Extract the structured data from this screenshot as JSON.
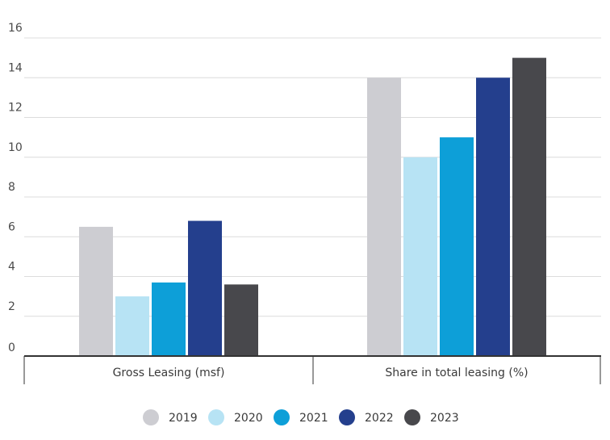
{
  "chart_data": {
    "type": "bar",
    "categories": [
      "Gross Leasing (msf)",
      "Share in total leasing (%)"
    ],
    "series": [
      {
        "name": "2019",
        "color": "#cdcdd2",
        "values": [
          6.5,
          14
        ]
      },
      {
        "name": "2020",
        "color": "#b7e3f4",
        "values": [
          3.0,
          10
        ]
      },
      {
        "name": "2021",
        "color": "#0d9fd8",
        "values": [
          3.7,
          11
        ]
      },
      {
        "name": "2022",
        "color": "#243f8d",
        "values": [
          6.8,
          14
        ]
      },
      {
        "name": "2023",
        "color": "#48484c",
        "values": [
          3.6,
          15
        ]
      }
    ],
    "yticks": [
      0,
      2,
      4,
      6,
      8,
      10,
      12,
      14,
      16
    ],
    "ylim": [
      0,
      16
    ],
    "grid": true,
    "legend": "bottom-center"
  }
}
